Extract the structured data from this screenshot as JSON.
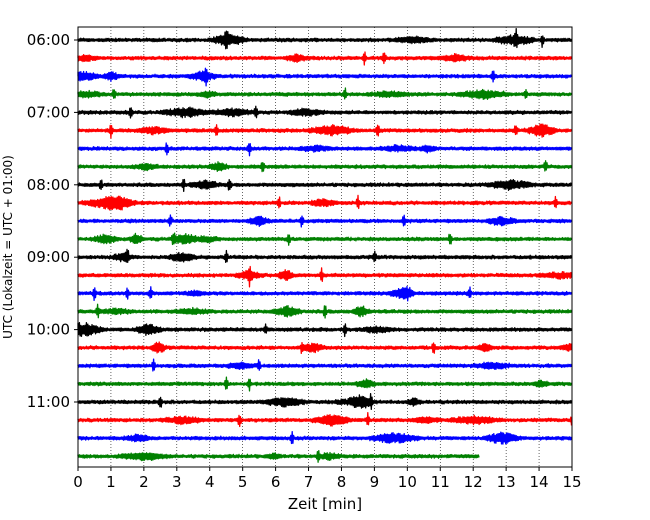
{
  "chart_data": {
    "type": "line",
    "title": "",
    "xlabel": "Zeit  [min]",
    "ylabel": "UTC (Lokalzeit = UTC + 01:00)",
    "xlim": [
      0,
      15
    ],
    "x_ticks": [
      0,
      1,
      2,
      3,
      4,
      5,
      6,
      7,
      8,
      9,
      10,
      11,
      12,
      13,
      14,
      15
    ],
    "y_ticks": [
      "06:00",
      "07:00",
      "08:00",
      "09:00",
      "10:00",
      "11:00"
    ],
    "grid": "vertical dotted lines at each minute",
    "trace_minutes_each": 15,
    "trace_colors": [
      "#000000",
      "#ff0000",
      "#0000ff",
      "#008000"
    ],
    "traces": [
      {
        "start": "06:00",
        "end_min": 15,
        "color": "#000000",
        "spikes_min": [
          4.5,
          13.3,
          14.1
        ]
      },
      {
        "start": "06:15",
        "end_min": 15,
        "color": "#ff0000",
        "spikes_min": [
          8.7,
          9.3
        ]
      },
      {
        "start": "06:30",
        "end_min": 15,
        "color": "#0000ff",
        "spikes_min": [
          3.9,
          12.6
        ]
      },
      {
        "start": "06:45",
        "end_min": 15,
        "color": "#008000",
        "spikes_min": [
          1.1,
          8.1,
          13.6
        ]
      },
      {
        "start": "07:00",
        "end_min": 15,
        "color": "#000000",
        "spikes_min": [
          1.6,
          5.4
        ]
      },
      {
        "start": "07:15",
        "end_min": 15,
        "color": "#ff0000",
        "spikes_min": [
          1.0,
          4.2,
          9.1,
          13.3
        ]
      },
      {
        "start": "07:30",
        "end_min": 15,
        "color": "#0000ff",
        "spikes_min": [
          2.7,
          5.2
        ]
      },
      {
        "start": "07:45",
        "end_min": 15,
        "color": "#008000",
        "spikes_min": [
          5.6,
          14.2
        ]
      },
      {
        "start": "08:00",
        "end_min": 15,
        "color": "#000000",
        "spikes_min": [
          0.7,
          3.2,
          4.6
        ]
      },
      {
        "start": "08:15",
        "end_min": 15,
        "color": "#ff0000",
        "spikes_min": [
          6.1,
          8.5,
          14.5
        ]
      },
      {
        "start": "08:30",
        "end_min": 15,
        "color": "#0000ff",
        "spikes_min": [
          2.8,
          6.8,
          9.9
        ]
      },
      {
        "start": "08:45",
        "end_min": 15,
        "color": "#008000",
        "spikes_min": [
          2.9,
          6.4,
          11.3
        ]
      },
      {
        "start": "09:00",
        "end_min": 15,
        "color": "#000000",
        "spikes_min": [
          1.5,
          4.5,
          9.0
        ]
      },
      {
        "start": "09:15",
        "end_min": 15,
        "color": "#ff0000",
        "spikes_min": [
          5.2,
          7.4
        ]
      },
      {
        "start": "09:30",
        "end_min": 15,
        "color": "#0000ff",
        "spikes_min": [
          0.5,
          1.5,
          2.2,
          11.9
        ]
      },
      {
        "start": "09:45",
        "end_min": 15,
        "color": "#008000",
        "spikes_min": [
          0.6,
          7.5
        ]
      },
      {
        "start": "10:00",
        "end_min": 15,
        "color": "#000000",
        "spikes_min": [
          5.7,
          8.1
        ]
      },
      {
        "start": "10:15",
        "end_min": 15,
        "color": "#ff0000",
        "spikes_min": [
          6.8,
          10.8
        ]
      },
      {
        "start": "10:30",
        "end_min": 15,
        "color": "#0000ff",
        "spikes_min": [
          2.3,
          5.5
        ]
      },
      {
        "start": "10:45",
        "end_min": 15,
        "color": "#008000",
        "spikes_min": [
          4.5,
          5.2
        ]
      },
      {
        "start": "11:00",
        "end_min": 15,
        "color": "#000000",
        "spikes_min": [
          2.5,
          8.9
        ]
      },
      {
        "start": "11:15",
        "end_min": 15,
        "color": "#ff0000",
        "spikes_min": [
          4.9,
          8.8,
          15.0
        ]
      },
      {
        "start": "11:30",
        "end_min": 15,
        "color": "#0000ff",
        "spikes_min": [
          6.5
        ]
      },
      {
        "start": "11:45",
        "end_min": 12.2,
        "color": "#008000",
        "spikes_min": [
          7.3
        ]
      }
    ]
  }
}
